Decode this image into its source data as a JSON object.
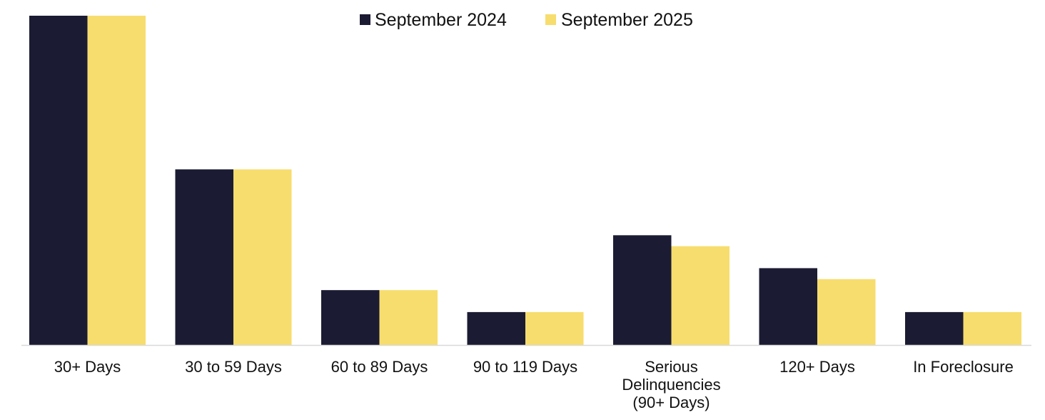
{
  "chart_data": {
    "type": "bar",
    "categories": [
      [
        "30+ Days"
      ],
      [
        "30 to 59 Days"
      ],
      [
        "60 to 89 Days"
      ],
      [
        "90 to 119 Days"
      ],
      [
        "Serious",
        "Delinquencies",
        "(90+ Days)"
      ],
      [
        "120+ Days"
      ],
      [
        "In Foreclosure"
      ]
    ],
    "series": [
      {
        "name": "September 2024",
        "color": "#1b1c33",
        "values": [
          3.0,
          1.6,
          0.5,
          0.3,
          1.0,
          0.7,
          0.3
        ]
      },
      {
        "name": "September 2025",
        "color": "#f7dd6d",
        "values": [
          3.0,
          1.6,
          0.5,
          0.3,
          0.9,
          0.6,
          0.3
        ]
      }
    ],
    "ylim": [
      0,
      3.0
    ],
    "grid": false,
    "legend_position": "top-center"
  }
}
